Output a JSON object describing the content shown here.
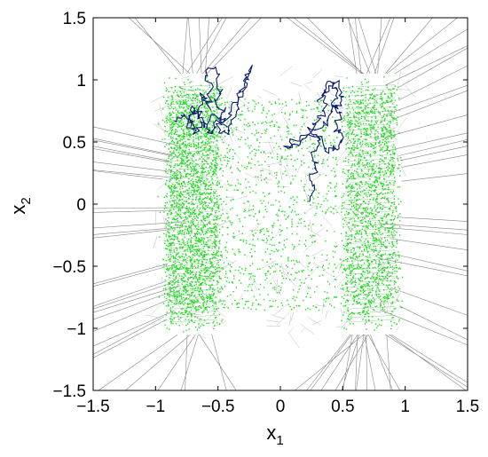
{
  "chart_data": {
    "type": "scatter",
    "title": "",
    "xlabel": {
      "base": "x",
      "sub": "1"
    },
    "ylabel": {
      "base": "x",
      "sub": "2"
    },
    "xlim": [
      -1.5,
      1.5
    ],
    "ylim": [
      -1.5,
      1.5
    ],
    "x_ticks": [
      -1.5,
      -1,
      -0.5,
      0,
      0.5,
      1,
      1.5
    ],
    "y_ticks": [
      -1.5,
      -1,
      -0.5,
      0,
      0.5,
      1,
      1.5
    ],
    "x_tick_labels": [
      "−1.5",
      "−1",
      "−0.5",
      "0",
      "0.5",
      "1",
      "1.5"
    ],
    "y_tick_labels": [
      "−1.5",
      "−1",
      "−0.5",
      "0",
      "0.5",
      "1",
      "1.5"
    ],
    "grid": false,
    "legend": "none",
    "series": [
      {
        "kind": "scatter-cloud",
        "color": "#22dd22",
        "clusters": [
          {
            "x_range": [
              -0.95,
              -0.45
            ],
            "y_range": [
              -1.1,
              1.05
            ]
          },
          {
            "x_range": [
              0.45,
              1.0
            ],
            "y_range": [
              -1.1,
              1.05
            ]
          },
          {
            "x_range": [
              -0.45,
              0.45
            ],
            "y_range": [
              -1.0,
              0.9
            ]
          }
        ]
      },
      {
        "kind": "mesh-edges",
        "color": "#888888",
        "note_ref": "triangulation"
      },
      {
        "kind": "trajectory",
        "color": "#0a1a6e",
        "points": [
          [
            -0.82,
            0.65
          ],
          [
            -0.78,
            0.72
          ],
          [
            -0.74,
            0.62
          ],
          [
            -0.7,
            0.8
          ],
          [
            -0.66,
            0.7
          ],
          [
            -0.62,
            0.9
          ],
          [
            -0.58,
            0.78
          ],
          [
            -0.55,
            0.95
          ],
          [
            -0.6,
            1.05
          ],
          [
            -0.52,
            1.1
          ],
          [
            -0.48,
            0.92
          ],
          [
            -0.52,
            0.82
          ],
          [
            -0.45,
            0.75
          ],
          [
            -0.5,
            0.6
          ],
          [
            -0.42,
            0.55
          ],
          [
            -0.38,
            0.7
          ],
          [
            -0.32,
            0.85
          ],
          [
            -0.28,
            1.0
          ],
          [
            -0.25,
            1.1
          ],
          [
            -0.3,
            0.95
          ],
          [
            -0.36,
            0.8
          ],
          [
            -0.44,
            0.68
          ],
          [
            -0.52,
            0.72
          ],
          [
            -0.6,
            0.62
          ],
          [
            -0.66,
            0.75
          ],
          [
            -0.72,
            0.68
          ],
          [
            -0.68,
            0.58
          ],
          [
            -0.62,
            0.66
          ],
          [
            -0.56,
            0.55
          ],
          [
            -0.5,
            0.66
          ],
          [
            -0.42,
            0.62
          ]
        ]
      },
      {
        "kind": "trajectory",
        "color": "#0a1a6e",
        "points": [
          [
            0.25,
            0.0
          ],
          [
            0.28,
            0.12
          ],
          [
            0.22,
            0.22
          ],
          [
            0.3,
            0.3
          ],
          [
            0.26,
            0.42
          ],
          [
            0.32,
            0.5
          ],
          [
            0.24,
            0.6
          ],
          [
            0.3,
            0.68
          ],
          [
            0.36,
            0.75
          ],
          [
            0.34,
            0.88
          ],
          [
            0.4,
            0.98
          ],
          [
            0.45,
            0.92
          ],
          [
            0.42,
            0.8
          ],
          [
            0.48,
            0.72
          ],
          [
            0.44,
            0.6
          ],
          [
            0.5,
            0.55
          ],
          [
            0.46,
            0.45
          ],
          [
            0.38,
            0.42
          ],
          [
            0.34,
            0.55
          ],
          [
            0.2,
            0.55
          ],
          [
            0.1,
            0.5
          ],
          [
            0.05,
            0.45
          ],
          [
            0.15,
            0.48
          ],
          [
            0.28,
            0.6
          ],
          [
            0.38,
            0.66
          ],
          [
            0.44,
            0.78
          ],
          [
            0.5,
            0.85
          ],
          [
            0.46,
            0.98
          ],
          [
            0.38,
            0.92
          ],
          [
            0.3,
            0.82
          ]
        ]
      }
    ]
  }
}
